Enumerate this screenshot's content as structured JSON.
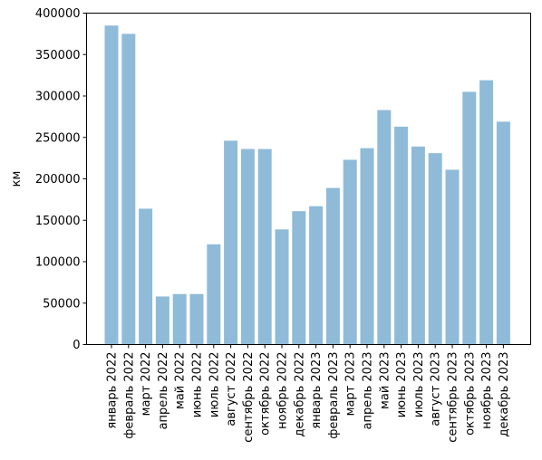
{
  "chart_data": {
    "type": "bar",
    "title": "",
    "xlabel": "",
    "ylabel": "км",
    "ylim": [
      0,
      400000
    ],
    "yticks": [
      0,
      50000,
      100000,
      150000,
      200000,
      250000,
      300000,
      350000,
      400000
    ],
    "yticklabels": [
      "0",
      "50000",
      "100000",
      "150000",
      "200000",
      "250000",
      "300000",
      "350000",
      "400000"
    ],
    "categories": [
      "январь 2022",
      "февраль 2022",
      "март 2022",
      "апрель 2022",
      "май 2022",
      "июнь 2022",
      "июль 2022",
      "август 2022",
      "сентябрь 2022",
      "октябрь 2022",
      "ноябрь 2022",
      "декабрь 2022",
      "январь 2023",
      "февраль 2023",
      "март 2023",
      "апрель 2023",
      "май 2023",
      "июнь 2023",
      "июль 2023",
      "август 2023",
      "сентябрь 2023",
      "октябрь 2023",
      "ноябрь 2023",
      "декабрь 2023"
    ],
    "values": [
      385000,
      375000,
      164000,
      58000,
      61000,
      61000,
      121000,
      246000,
      236000,
      236000,
      139000,
      161000,
      167000,
      189000,
      223000,
      237000,
      283000,
      263000,
      239000,
      231000,
      211000,
      305000,
      319000,
      269000
    ],
    "bar_color": "#8fbbd9",
    "grid": false,
    "legend": "none"
  }
}
